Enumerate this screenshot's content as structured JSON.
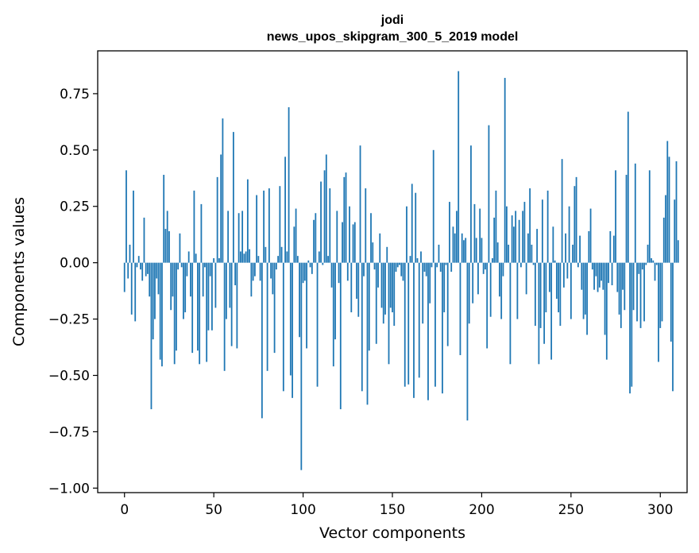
{
  "chart_data": {
    "type": "bar",
    "title_line1": "jodi",
    "title_line2": "news_upos_skipgram_300_5_2019 model",
    "xlabel": "Vector components",
    "ylabel": "Components values",
    "xlim": [
      -15,
      315
    ],
    "ylim": [
      -1.02,
      0.94
    ],
    "xticks": [
      0,
      50,
      100,
      150,
      200,
      250,
      300
    ],
    "yticks": [
      -1.0,
      -0.75,
      -0.5,
      -0.25,
      0.0,
      0.25,
      0.5,
      0.75
    ],
    "ytick_labels": [
      "−1.00",
      "−0.75",
      "−0.50",
      "−0.25",
      "0.00",
      "0.25",
      "0.50",
      "0.75"
    ],
    "bar_color": "#1f77b4",
    "values": [
      -0.13,
      0.41,
      -0.07,
      0.08,
      -0.23,
      0.32,
      -0.26,
      -0.02,
      0.03,
      -0.03,
      -0.08,
      0.2,
      -0.06,
      -0.05,
      -0.15,
      -0.65,
      -0.34,
      -0.25,
      -0.07,
      -0.14,
      -0.43,
      -0.46,
      0.39,
      0.15,
      0.23,
      0.14,
      -0.21,
      -0.15,
      -0.45,
      -0.39,
      -0.03,
      0.13,
      -0.02,
      -0.25,
      -0.22,
      -0.06,
      0.05,
      -0.15,
      -0.4,
      0.32,
      0.04,
      -0.39,
      -0.45,
      0.26,
      -0.15,
      -0.02,
      -0.44,
      -0.3,
      -0.06,
      -0.3,
      0.02,
      -0.2,
      0.38,
      0.02,
      0.48,
      0.64,
      -0.48,
      -0.25,
      0.23,
      -0.2,
      -0.37,
      0.58,
      -0.1,
      -0.38,
      0.22,
      0.05,
      0.23,
      0.04,
      0.05,
      0.37,
      0.06,
      -0.15,
      -0.08,
      -0.06,
      0.3,
      0.03,
      -0.08,
      -0.69,
      0.32,
      0.07,
      -0.48,
      0.33,
      -0.07,
      -0.14,
      -0.4,
      -0.03,
      0.03,
      0.34,
      0.07,
      -0.57,
      0.47,
      0.05,
      0.69,
      -0.5,
      -0.6,
      0.16,
      0.24,
      0.03,
      -0.33,
      -0.92,
      -0.09,
      -0.08,
      -0.38,
      0.01,
      -0.02,
      -0.05,
      0.19,
      0.22,
      -0.55,
      0.05,
      0.36,
      -0.01,
      0.41,
      0.48,
      0.03,
      0.33,
      -0.11,
      -0.46,
      -0.34,
      0.23,
      -0.09,
      -0.65,
      0.18,
      0.38,
      0.4,
      -0.08,
      0.25,
      -0.22,
      0.17,
      0.18,
      -0.16,
      -0.24,
      0.52,
      -0.57,
      -0.06,
      0.33,
      -0.63,
      -0.39,
      0.22,
      0.09,
      -0.03,
      -0.36,
      -0.11,
      0.13,
      -0.2,
      -0.27,
      -0.23,
      0.07,
      -0.45,
      -0.2,
      -0.22,
      -0.28,
      -0.04,
      -0.02,
      -0.01,
      -0.06,
      -0.08,
      -0.55,
      0.25,
      -0.54,
      0.03,
      0.35,
      -0.6,
      0.31,
      0.02,
      -0.51,
      0.05,
      -0.27,
      -0.04,
      -0.06,
      -0.61,
      -0.18,
      -0.02,
      0.5,
      -0.55,
      -0.02,
      0.08,
      -0.04,
      -0.58,
      -0.22,
      -0.01,
      -0.37,
      0.27,
      -0.04,
      0.16,
      0.13,
      0.23,
      0.85,
      -0.41,
      0.13,
      0.1,
      0.11,
      -0.7,
      -0.27,
      0.52,
      -0.18,
      0.26,
      0.11,
      -0.14,
      0.24,
      0.11,
      -0.05,
      -0.03,
      -0.38,
      0.61,
      -0.24,
      0.02,
      0.2,
      0.32,
      0.09,
      -0.15,
      -0.25,
      -0.06,
      0.82,
      0.25,
      0.08,
      -0.45,
      0.21,
      0.16,
      0.23,
      -0.25,
      0.19,
      -0.02,
      0.23,
      0.27,
      -0.14,
      0.13,
      0.33,
      0.08,
      -0.01,
      -0.28,
      0.15,
      -0.45,
      -0.29,
      0.28,
      -0.36,
      -0.22,
      0.32,
      -0.13,
      -0.43,
      0.16,
      0.01,
      -0.16,
      -0.22,
      -0.28,
      0.46,
      -0.11,
      0.13,
      -0.07,
      0.25,
      -0.25,
      0.08,
      0.34,
      0.38,
      -0.02,
      0.12,
      -0.12,
      -0.25,
      -0.23,
      -0.32,
      0.14,
      0.24,
      -0.03,
      -0.12,
      -0.06,
      -0.13,
      -0.11,
      -0.08,
      -0.12,
      -0.32,
      -0.43,
      -0.09,
      0.14,
      -0.1,
      0.12,
      0.41,
      -0.13,
      -0.23,
      -0.29,
      -0.12,
      -0.21,
      0.39,
      0.67,
      -0.58,
      -0.55,
      -0.21,
      0.44,
      -0.26,
      -0.05,
      -0.29,
      -0.03,
      -0.26,
      -0.01,
      0.08,
      0.41,
      0.02,
      0.01,
      -0.08,
      -0.01,
      -0.44,
      -0.29,
      -0.26,
      0.2,
      0.3,
      0.54,
      0.47,
      -0.35,
      -0.57,
      0.28,
      0.45,
      0.1
    ]
  }
}
